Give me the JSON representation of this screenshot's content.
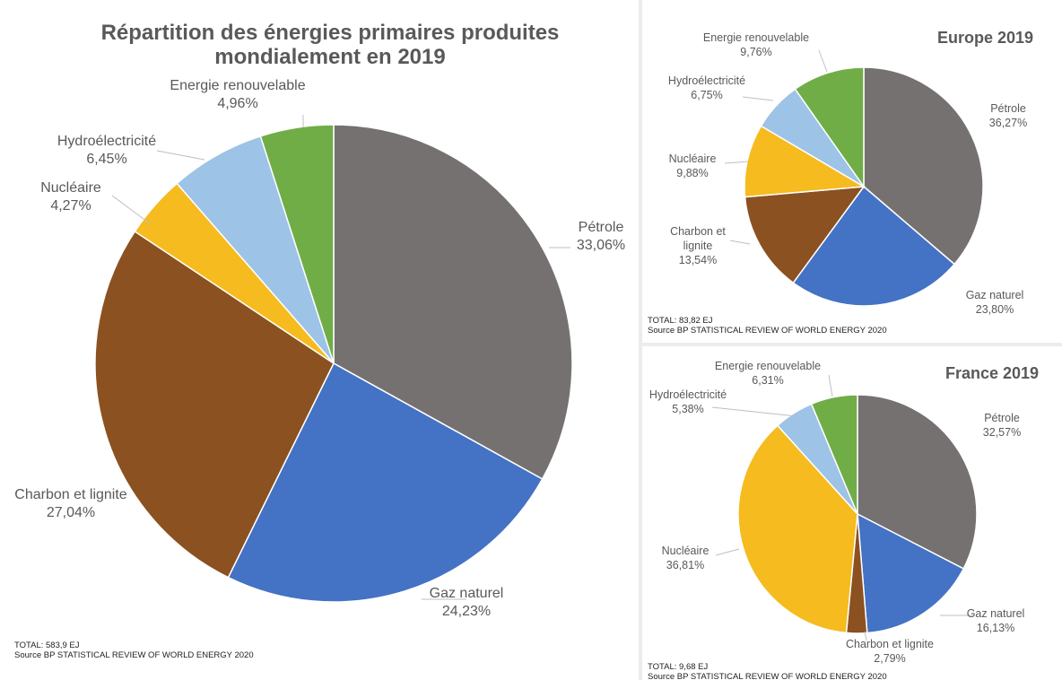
{
  "colors": {
    "Pétrole": "#767171",
    "Gaz naturel": "#4472c4",
    "Charbon et lignite": "#8b5120",
    "Nucléaire": "#f5bb1f",
    "Hydroélectricité": "#9dc3e6",
    "Energie renouvelable": "#70ad47"
  },
  "chart_data": [
    {
      "type": "pie",
      "title": "Répartition des énergies primaires produites mondialement en 2019",
      "title_lines": [
        "Répartition des énergies primaires produites",
        "mondialement en 2019"
      ],
      "categories": [
        "Pétrole",
        "Gaz naturel",
        "Charbon et lignite",
        "Nucléaire",
        "Hydroélectricité",
        "Energie renouvelable"
      ],
      "values": [
        33.06,
        24.23,
        27.04,
        4.27,
        6.45,
        4.96
      ],
      "value_labels": [
        "33,06%",
        "24,23%",
        "27,04%",
        "4,27%",
        "6,45%",
        "4,96%"
      ],
      "footer": [
        "TOTAL: 583,9 EJ",
        "Source BP STATISTICAL REVIEW OF WORLD ENERGY 2020"
      ]
    },
    {
      "type": "pie",
      "title": "Europe 2019",
      "categories": [
        "Pétrole",
        "Gaz naturel",
        "Charbon et lignite",
        "Nucléaire",
        "Hydroélectricité",
        "Energie renouvelable"
      ],
      "values": [
        36.27,
        23.8,
        13.54,
        9.88,
        6.75,
        9.76
      ],
      "value_labels": [
        "36,27%",
        "23,80%",
        "13,54%",
        "9,88%",
        "6,75%",
        "9,76%"
      ],
      "footer": [
        "TOTAL: 83,82 EJ",
        "Source BP STATISTICAL REVIEW OF WORLD ENERGY 2020"
      ]
    },
    {
      "type": "pie",
      "title": "France 2019",
      "categories": [
        "Pétrole",
        "Gaz naturel",
        "Charbon et lignite",
        "Nucléaire",
        "Hydroélectricité",
        "Energie renouvelable"
      ],
      "values": [
        32.57,
        16.13,
        2.79,
        36.81,
        5.38,
        6.31
      ],
      "value_labels": [
        "32,57%",
        "16,13%",
        "2,79%",
        "36,81%",
        "5,38%",
        "6,31%"
      ],
      "footer": [
        "TOTAL: 9,68 EJ",
        "Source BP STATISTICAL REVIEW OF WORLD ENERGY 2020"
      ]
    }
  ]
}
